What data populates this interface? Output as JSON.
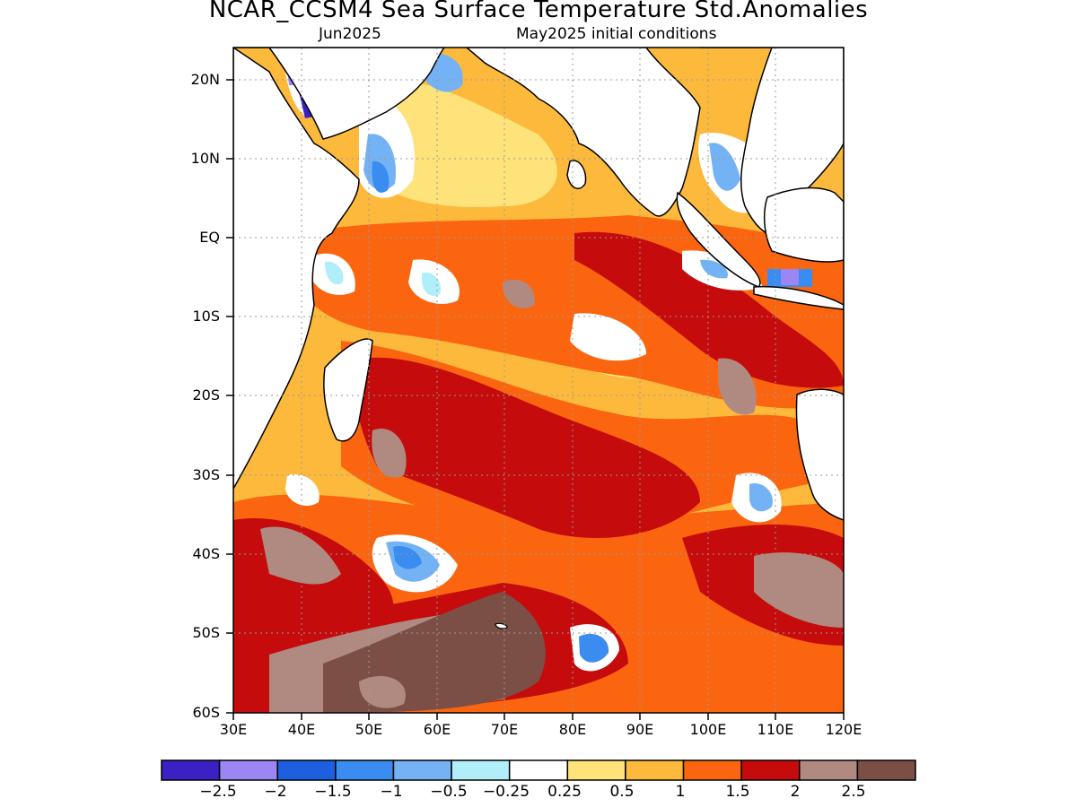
{
  "title": "NCAR_CCSM4 Sea Surface Temperature Std.Anomalies",
  "subtitle_left": "Jun2025",
  "subtitle_right": "May2025 initial conditions",
  "lat_labels": [
    "20N",
    "10N",
    "EQ",
    "10S",
    "20S",
    "30S",
    "40S",
    "50S",
    "60S"
  ],
  "lon_labels": [
    "30E",
    "40E",
    "50E",
    "60E",
    "70E",
    "80E",
    "90E",
    "100E",
    "110E",
    "120E"
  ],
  "colorbar": {
    "colors": [
      "#3b20c4",
      "#9b86f3",
      "#1e5fe0",
      "#3a8cf0",
      "#73b2f5",
      "#b0eefa",
      "#ffffff",
      "#fee27a",
      "#fdb93c",
      "#fb6510",
      "#c50b0b",
      "#b08a80",
      "#7b4f45"
    ],
    "labels": [
      "−2.5",
      "−2",
      "−1.5",
      "−1",
      "−0.5",
      "−0.25",
      "0.25",
      "0.5",
      "1",
      "1.5",
      "2",
      "2.5"
    ]
  }
}
